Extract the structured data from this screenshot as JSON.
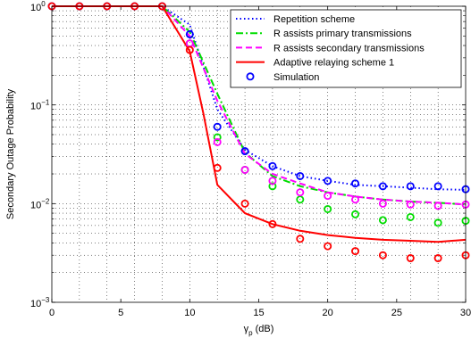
{
  "chart_data": {
    "type": "line",
    "xlabel": "γ",
    "xlabel_sub": "p",
    "xlabel_unit": " (dB)",
    "ylabel": "Secondary Outage Probability",
    "xlim": [
      0,
      30
    ],
    "ylim": [
      0.001,
      1
    ],
    "y_scale": "log",
    "grid": true,
    "legend_position": "top-right",
    "x_ticks": [
      0,
      5,
      10,
      15,
      20,
      25,
      30
    ],
    "y_ticks": [
      {
        "value": 0.001,
        "base": "10",
        "exp": "−3"
      },
      {
        "value": 0.01,
        "base": "10",
        "exp": "−2"
      },
      {
        "value": 0.1,
        "base": "10",
        "exp": "−1"
      },
      {
        "value": 1,
        "base": "10",
        "exp": "0"
      }
    ],
    "series": [
      {
        "name": "Repetition scheme",
        "color": "#0000ff",
        "style": "dotted",
        "x": [
          0,
          2,
          4,
          6,
          8,
          10,
          12,
          14,
          16,
          18,
          20,
          22,
          24,
          26,
          28,
          30
        ],
        "y": [
          1,
          1,
          1,
          1,
          1,
          0.65,
          0.09,
          0.035,
          0.024,
          0.019,
          0.017,
          0.0155,
          0.015,
          0.0145,
          0.014,
          0.0138
        ]
      },
      {
        "name": "R assists primary transmissions",
        "color": "#00dd00",
        "style": "dashdot",
        "x": [
          0,
          2,
          4,
          6,
          8,
          10,
          12,
          14,
          16,
          18,
          20,
          22,
          24,
          26,
          28,
          30
        ],
        "y": [
          1,
          1,
          1,
          1,
          1,
          0.55,
          0.13,
          0.033,
          0.019,
          0.015,
          0.013,
          0.0118,
          0.011,
          0.0105,
          0.0102,
          0.0098
        ]
      },
      {
        "name": "R assists secondary transmissions",
        "color": "#ff00ff",
        "style": "dashed",
        "x": [
          0,
          2,
          4,
          6,
          8,
          10,
          12,
          14,
          16,
          18,
          20,
          22,
          24,
          26,
          28,
          30
        ],
        "y": [
          1,
          1,
          1,
          1,
          1,
          0.5,
          0.11,
          0.032,
          0.02,
          0.016,
          0.013,
          0.0118,
          0.011,
          0.0105,
          0.0102,
          0.0098
        ]
      },
      {
        "name": "Adaptive relaying scheme 1",
        "color": "#ff0000",
        "style": "solid",
        "x": [
          0,
          2,
          4,
          6,
          8,
          10,
          11,
          12,
          14,
          16,
          18,
          20,
          22,
          24,
          26,
          28,
          30
        ],
        "y": [
          1,
          1,
          1,
          1,
          1,
          0.35,
          0.08,
          0.0155,
          0.008,
          0.0062,
          0.0053,
          0.0048,
          0.0045,
          0.0043,
          0.0042,
          0.0041,
          0.0043
        ]
      },
      {
        "name": "Simulation",
        "color": "#0000ff",
        "style": "marker",
        "x": [],
        "y": []
      }
    ],
    "simulation_points": [
      {
        "color": "#0000ff",
        "x": [
          0,
          2,
          4,
          6,
          8,
          10,
          12,
          14,
          16,
          18,
          20,
          22,
          24,
          26,
          28,
          30
        ],
        "y": [
          1,
          1,
          1,
          1,
          1,
          0.52,
          0.06,
          0.034,
          0.024,
          0.019,
          0.017,
          0.016,
          0.015,
          0.015,
          0.015,
          0.014
        ]
      },
      {
        "color": "#00dd00",
        "x": [
          10,
          12,
          14,
          16,
          18,
          20,
          22,
          24,
          26,
          28,
          30
        ],
        "y": [
          0.42,
          0.047,
          0.022,
          0.015,
          0.011,
          0.0088,
          0.0078,
          0.0068,
          0.0073,
          0.0064,
          0.0067
        ]
      },
      {
        "color": "#ff00ff",
        "x": [
          10,
          12,
          14,
          16,
          18,
          20,
          22,
          24,
          26,
          28,
          30
        ],
        "y": [
          0.42,
          0.042,
          0.022,
          0.017,
          0.013,
          0.012,
          0.011,
          0.01,
          0.0098,
          0.0095,
          0.0098
        ]
      },
      {
        "color": "#ff0000",
        "x": [
          0,
          2,
          4,
          6,
          8,
          10,
          12,
          14,
          16,
          18,
          20,
          22,
          24,
          26,
          28,
          30
        ],
        "y": [
          1,
          1,
          1,
          1,
          1,
          0.36,
          0.023,
          0.01,
          0.0062,
          0.0044,
          0.0037,
          0.0033,
          0.003,
          0.0028,
          0.0028,
          0.003
        ]
      }
    ]
  }
}
